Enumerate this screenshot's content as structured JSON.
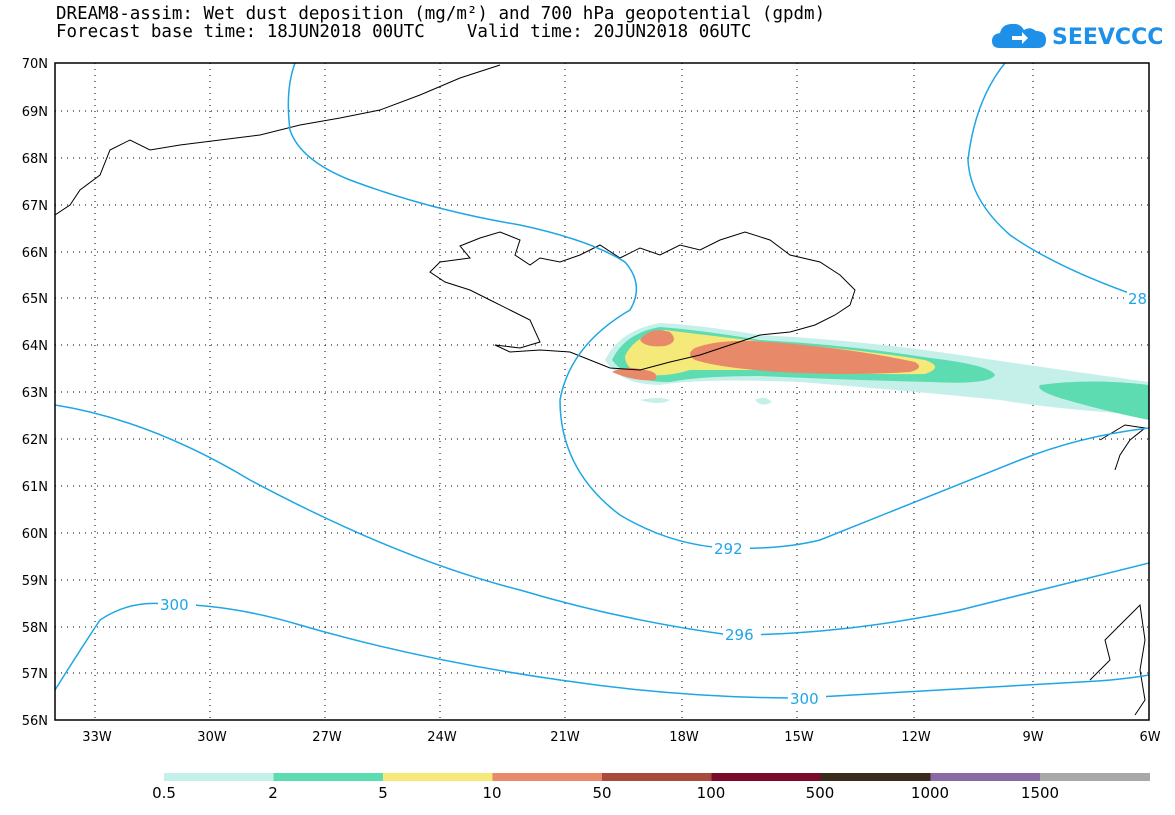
{
  "title_line1": "DREAM8-assim: Wet dust deposition (mg/m²) and 700 hPa geopotential (gpdm)",
  "title_line2": "Forecast base time: 18JUN2018 00UTC    Valid time: 20JUN2018 06UTC",
  "logo_text": "SEEVCCC",
  "map": {
    "lon_range": [
      -34.5,
      -6
    ],
    "lat_range": [
      56,
      70
    ],
    "lat_labels": [
      "70N",
      "69N",
      "68N",
      "67N",
      "66N",
      "65N",
      "64N",
      "63N",
      "62N",
      "61N",
      "60N",
      "59N",
      "58N",
      "57N",
      "56N"
    ],
    "lon_labels": [
      "33W",
      "30W",
      "27W",
      "24W",
      "21W",
      "18W",
      "15W",
      "12W",
      "9W",
      "6W"
    ],
    "grid": "dotted"
  },
  "contours": {
    "color": "#1ea6e6",
    "labels": [
      "292",
      "296",
      "300",
      "300",
      "28"
    ]
  },
  "colorbar": {
    "labels": [
      "0.5",
      "2",
      "5",
      "10",
      "50",
      "100",
      "500",
      "1000",
      "1500"
    ],
    "colors": [
      "#c5f0ea",
      "#5cdcb0",
      "#f5e97a",
      "#e8896a",
      "#a84a3c",
      "#7a0a2a",
      "#3a2a1e",
      "#8a6aa0",
      "#a8a8a8"
    ]
  }
}
